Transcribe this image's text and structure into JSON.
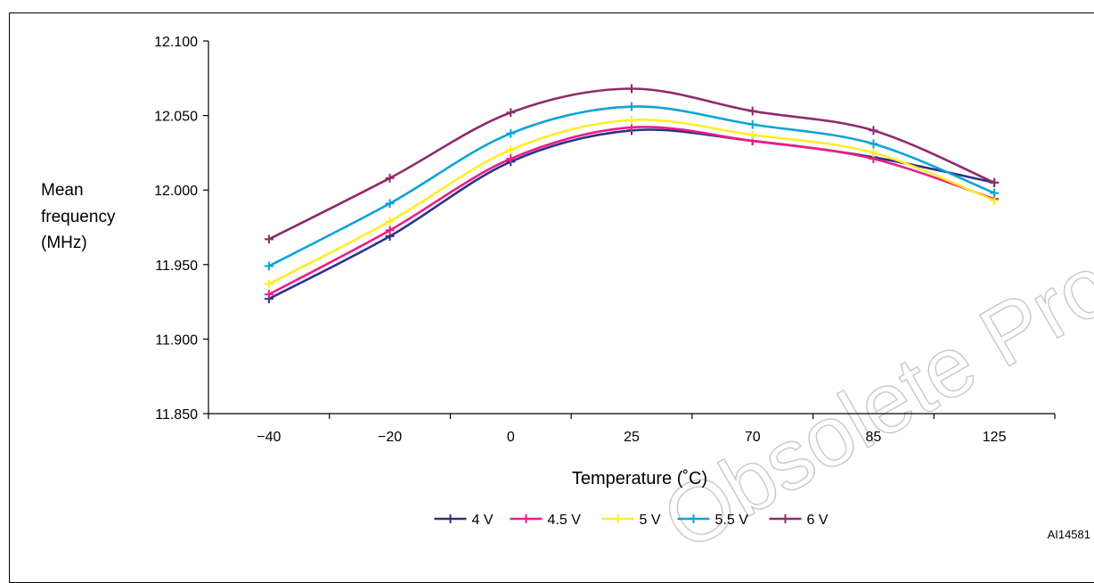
{
  "chart_data": {
    "type": "line",
    "categories": [
      "−40",
      "−20",
      "0",
      "25",
      "70",
      "85",
      "125"
    ],
    "ylabel": [
      "Mean",
      "frequency",
      "(MHz)"
    ],
    "xlabel": "Temperature (˚C)",
    "ylim": [
      11.85,
      12.1
    ],
    "y_ticks": [
      "12.100",
      "12.050",
      "12.000",
      "11.950",
      "11.900",
      "11.850"
    ],
    "legend_position": "bottom",
    "series": [
      {
        "name": "4 V",
        "color": "#2e3187",
        "values": [
          11.927,
          11.969,
          12.019,
          12.04,
          12.033,
          12.022,
          12.005
        ]
      },
      {
        "name": "4.5 V",
        "color": "#ec1c8a",
        "values": [
          11.93,
          11.973,
          12.021,
          12.042,
          12.033,
          12.021,
          11.994
        ]
      },
      {
        "name": "5 V",
        "color": "#fdee28",
        "values": [
          11.937,
          11.979,
          12.027,
          12.047,
          12.037,
          12.025,
          11.993
        ]
      },
      {
        "name": "5.5 V",
        "color": "#0da3d6",
        "values": [
          11.949,
          11.991,
          12.038,
          12.056,
          12.044,
          12.031,
          11.998
        ]
      },
      {
        "name": "6 V",
        "color": "#8e2a6b",
        "values": [
          11.967,
          12.008,
          12.052,
          12.068,
          12.053,
          12.04,
          12.005
        ]
      }
    ]
  },
  "watermark": "Obsolete Product(s)",
  "figure_id": "AI14581"
}
